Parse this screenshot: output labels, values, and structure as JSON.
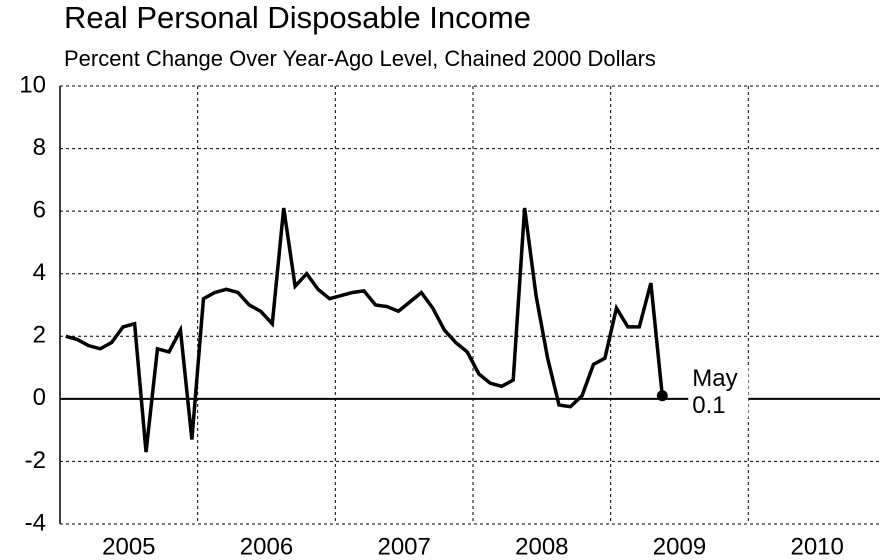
{
  "chart_data": {
    "type": "line",
    "title": "Real Personal Disposable Income",
    "subtitle": "Percent Change Over Year-Ago Level, Chained 2000 Dollars",
    "color": "#000000",
    "x": [
      2005.042,
      2005.125,
      2005.208,
      2005.292,
      2005.375,
      2005.458,
      2005.542,
      2005.625,
      2005.708,
      2005.792,
      2005.875,
      2005.958,
      2006.042,
      2006.125,
      2006.208,
      2006.292,
      2006.375,
      2006.458,
      2006.542,
      2006.625,
      2006.708,
      2006.792,
      2006.875,
      2006.958,
      2007.042,
      2007.125,
      2007.208,
      2007.292,
      2007.375,
      2007.458,
      2007.542,
      2007.625,
      2007.708,
      2007.792,
      2007.875,
      2007.958,
      2008.042,
      2008.125,
      2008.208,
      2008.292,
      2008.375,
      2008.458,
      2008.542,
      2008.625,
      2008.708,
      2008.792,
      2008.875,
      2008.958,
      2009.042,
      2009.125,
      2009.208,
      2009.292,
      2009.375
    ],
    "values": [
      2.0,
      1.9,
      1.7,
      1.6,
      1.8,
      2.3,
      2.4,
      -1.7,
      1.6,
      1.5,
      2.2,
      -1.3,
      3.2,
      3.4,
      3.5,
      3.4,
      3.0,
      2.8,
      2.4,
      6.1,
      3.6,
      4.0,
      3.5,
      3.2,
      3.3,
      3.4,
      3.45,
      3.0,
      2.95,
      2.8,
      3.1,
      3.4,
      2.9,
      2.2,
      1.8,
      1.5,
      0.8,
      0.5,
      0.4,
      0.6,
      6.1,
      3.3,
      1.3,
      -0.2,
      -0.25,
      0.1,
      1.1,
      1.3,
      2.9,
      2.3,
      2.3,
      3.7,
      0.1
    ],
    "annotation": "May",
    "xlim": [
      2005,
      2011
    ],
    "xticks": [
      {
        "value": 2005.5,
        "label": "2005"
      },
      {
        "value": 2006.5,
        "label": "2006"
      },
      {
        "value": 2007.5,
        "label": "2007"
      },
      {
        "value": 2008.5,
        "label": "2008"
      },
      {
        "value": 2009.5,
        "label": "2009"
      },
      {
        "value": 2010.5,
        "label": "2010"
      }
    ],
    "xgrid": [
      2006,
      2007,
      2008,
      2009,
      2010
    ],
    "ylim": [
      -4,
      10
    ],
    "yticks": [
      -4,
      -2,
      0,
      2,
      4,
      6,
      8,
      10
    ],
    "grid": true
  }
}
